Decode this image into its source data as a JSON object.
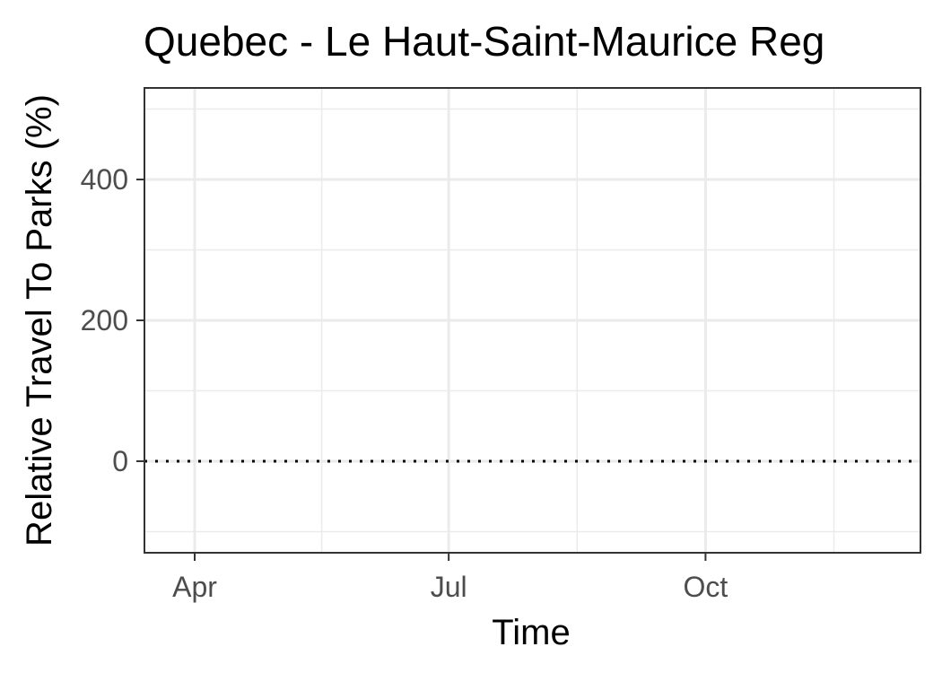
{
  "chart_data": {
    "type": "line",
    "title": "Quebec - Le Haut-Saint-Maurice Reg",
    "xlabel": "Time",
    "ylabel": "Relative Travel To Parks (%)",
    "x_ticks": [
      {
        "label": "Apr",
        "date": "2020-04-01"
      },
      {
        "label": "Jul",
        "date": "2020-07-01"
      },
      {
        "label": "Oct",
        "date": "2020-10-01"
      }
    ],
    "x_range": [
      "2020-03-14",
      "2020-12-17"
    ],
    "ylim": [
      -130,
      530
    ],
    "y_ticks": [
      0,
      200,
      400
    ],
    "reference_line": {
      "y": 0,
      "style": "dotted",
      "color": "#000000"
    },
    "series": [],
    "grid": true,
    "panel_border_color": "#333333",
    "grid_color": "#ebebeb"
  }
}
